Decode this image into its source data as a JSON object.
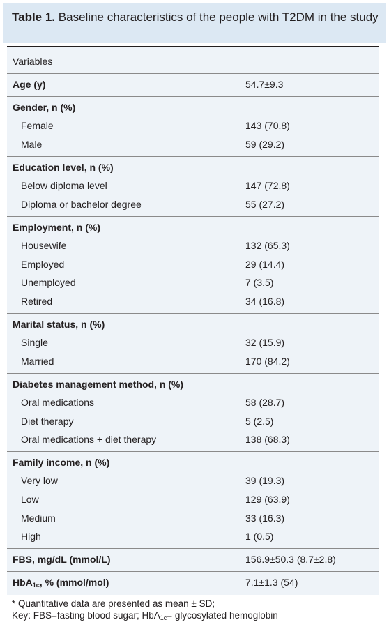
{
  "title": {
    "lead": "Table 1.",
    "text": " Baseline characteristics of the people with T2DM in the study"
  },
  "rows": {
    "variables": "Variables",
    "age_label": "Age (y)",
    "age_value": "54.7±9.3",
    "gender_label": "Gender, n (%)",
    "female_label": "Female",
    "female_value": "143 (70.8)",
    "male_label": "Male",
    "male_value": "59 (29.2)",
    "education_label": "Education level, n (%)",
    "below_diploma_label": "Below diploma level",
    "below_diploma_value": "147 (72.8)",
    "diploma_label": "Diploma or bachelor degree",
    "diploma_value": "55 (27.2)",
    "employment_label": "Employment, n (%)",
    "housewife_label": "Housewife",
    "housewife_value": "132 (65.3)",
    "employed_label": "Employed",
    "employed_value": "29 (14.4)",
    "unemployed_label": "Unemployed",
    "unemployed_value": "7 (3.5)",
    "retired_label": "Retired",
    "retired_value": "34 (16.8)",
    "marital_label": "Marital status, n (%)",
    "single_label": "Single",
    "single_value": "32 (15.9)",
    "married_label": "Married",
    "married_value": "170 (84.2)",
    "diabetes_label": "Diabetes management method, n (%)",
    "oral_label": "Oral medications",
    "oral_value": "58 (28.7)",
    "diet_label": "Diet therapy",
    "diet_value": "5 (2.5)",
    "oral_diet_label": "Oral medications + diet therapy",
    "oral_diet_value": "138 (68.3)",
    "income_label": "Family income, n (%)",
    "very_low_label": "Very low",
    "very_low_value": "39 (19.3)",
    "low_label": "Low",
    "low_value": "129 (63.9)",
    "medium_label": "Medium",
    "medium_value": "33 (16.3)",
    "high_label": "High",
    "high_value": "1 (0.5)",
    "fbs_label": "FBS, mg/dL (mmol/L)",
    "fbs_value": "156.9±50.3 (8.7±2.8)",
    "hba_prefix": "HbA",
    "hba_sub": "1c",
    "hba_suffix": ", % (mmol/mol)",
    "hba_value": "7.1±1.3 (54)"
  },
  "footnote": {
    "line1": "* Quantitative data are presented as mean ± SD;",
    "line2_a": "Key: FBS=fasting blood sugar; HbA",
    "line2_sub": "1c",
    "line2_b": "= glycosylated hemoglobin"
  },
  "colors": {
    "title_bg": "#dce8f3",
    "table_bg": "#eef3f8",
    "text": "#231f20"
  }
}
